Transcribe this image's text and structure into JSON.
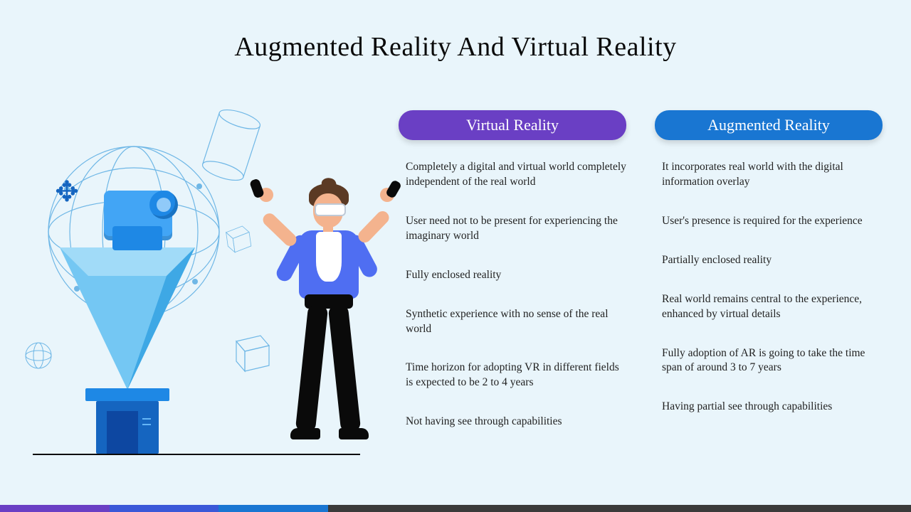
{
  "background_color": "#e9f5fb",
  "title": {
    "text": "Augmented Reality And Virtual Reality",
    "color": "#0a0a0a",
    "fontsize": 38
  },
  "columns": [
    {
      "header": "Virtual Reality",
      "header_bg": "#6a3fc4",
      "items": [
        "Completely a digital and virtual world completely independent of the real world",
        "User need not to be present for experiencing the imaginary world",
        "Fully enclosed reality",
        "Synthetic experience with no sense of the real world",
        "Time horizon for adopting VR in different fields is expected to be 2 to 4 years",
        "Not having see through capabilities"
      ]
    },
    {
      "header": "Augmented  Reality",
      "header_bg": "#1976d2",
      "items": [
        "It incorporates real world with the digital information overlay",
        "User's presence is required for the experience",
        "Partially enclosed reality",
        "Real world remains central to the experience, enhanced by virtual details",
        "Fully adoption of AR is going to take the time span of around 3 to 7 years",
        "Having partial see through capabilities"
      ]
    }
  ],
  "illustration": {
    "stroke_color": "#6fb7e6",
    "accent_primary": "#1e88e5",
    "accent_dark": "#1565c0",
    "accent_light": "#64b5f6",
    "skin": "#f4b38e",
    "shirt": "#4f6ef2",
    "hair": "#5b3a24",
    "pants": "#0a0a0a",
    "headset": "#ffffff"
  },
  "footer": {
    "segments": [
      {
        "color": "#6a3fc4",
        "width_pct": 12
      },
      {
        "color": "#3a58d8",
        "width_pct": 12
      },
      {
        "color": "#1976d2",
        "width_pct": 12
      },
      {
        "color": "#3a3a3a",
        "width_pct": 64
      }
    ]
  }
}
